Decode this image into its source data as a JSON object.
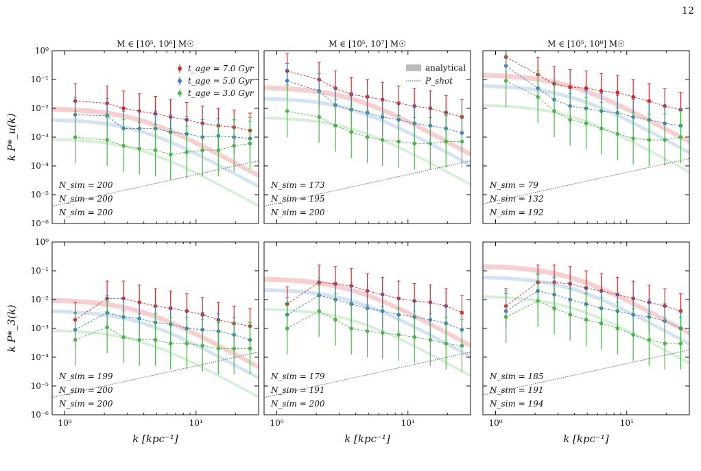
{
  "page": {
    "number": "12"
  },
  "legend": {
    "red_label": "t_age = 7.0 Gyr",
    "blue_label": "t_age = 5.0 Gyr",
    "green_label": "t_age = 3.0 Gyr",
    "analytical_label": "analytical",
    "shot_label": "P_shot"
  },
  "colors": {
    "red": "#d62728",
    "blue": "#3b7dbf",
    "green": "#4bb44a",
    "shot": "#666666"
  },
  "axes": {
    "xlabel": "k [kpc⁻¹]",
    "row_ylabels": [
      "k P*_u(k)",
      "k P*_3(k)"
    ],
    "col_titles": [
      "M ∈ [10⁵, 10⁶] M☉",
      "M ∈ [10⁵, 10⁷] M☉",
      "M ∈ [10⁵, 10⁸] M☉"
    ],
    "xlim": [
      0.8,
      30
    ],
    "ylim": [
      1e-06,
      1
    ],
    "xscale": "log",
    "yscale": "log"
  },
  "chart_data": {
    "type": "scatter",
    "k": [
      1.2,
      2.1,
      2.8,
      3.7,
      4.9,
      6.4,
      8.5,
      11.2,
      14.8,
      19.5,
      25.8
    ],
    "panels": [
      {
        "row": 0,
        "col": 0,
        "n_sim": {
          "red": "N_sim = 200",
          "blue": "N_sim = 200",
          "green": "N_sim = 200"
        },
        "series": [
          {
            "name": "red",
            "values": [
              0.018,
              0.015,
              0.01,
              0.008,
              0.0065,
              0.005,
              0.004,
              0.003,
              0.0025,
              0.0022,
              0.0017
            ]
          },
          {
            "name": "blue",
            "values": [
              0.006,
              0.0055,
              0.002,
              0.002,
              0.002,
              0.0015,
              0.0013,
              0.001,
              0.0011,
              0.001,
              0.0009
            ]
          },
          {
            "name": "green",
            "values": [
              0.001,
              0.0008,
              0.0005,
              0.0004,
              0.00035,
              0.00025,
              0.0003,
              0.00035,
              0.00035,
              0.0005,
              0.0006
            ]
          }
        ],
        "band_amplitude": 0.01
      },
      {
        "row": 0,
        "col": 1,
        "n_sim": {
          "red": "N_sim = 173",
          "blue": "N_sim = 195",
          "green": "N_sim = 200"
        },
        "series": [
          {
            "name": "red",
            "values": [
              0.2,
              0.1,
              0.05,
              0.03,
              0.025,
              0.02,
              0.015,
              0.012,
              0.01,
              0.007,
              0.005
            ]
          },
          {
            "name": "blue",
            "values": [
              0.09,
              0.04,
              0.013,
              0.009,
              0.007,
              0.005,
              0.004,
              0.003,
              0.0025,
              0.002,
              0.0014
            ]
          },
          {
            "name": "green",
            "values": [
              0.008,
              0.005,
              0.0025,
              0.0015,
              0.001,
              0.0008,
              0.0007,
              0.0006,
              0.0006,
              0.0007,
              0.0007
            ]
          }
        ],
        "band_amplitude": 0.055
      },
      {
        "row": 0,
        "col": 2,
        "n_sim": {
          "red": "N_sim = 79",
          "blue": "N_sim = 132",
          "green": "N_sim = 192"
        },
        "series": [
          {
            "name": "red",
            "values": [
              0.6,
              0.15,
              0.07,
              0.055,
              0.05,
              0.04,
              0.035,
              0.025,
              0.018,
              0.012,
              0.009
            ]
          },
          {
            "name": "blue",
            "values": [
              0.3,
              0.05,
              0.02,
              0.012,
              0.01,
              0.008,
              0.007,
              0.005,
              0.004,
              0.003,
              0.0025
            ]
          },
          {
            "name": "green",
            "values": [
              0.09,
              0.025,
              0.008,
              0.004,
              0.003,
              0.002,
              0.0013,
              0.0009,
              0.0008,
              0.0008,
              0.001
            ]
          }
        ],
        "band_amplitude": 0.15
      },
      {
        "row": 1,
        "col": 0,
        "n_sim": {
          "red": "N_sim = 199",
          "blue": "N_sim = 200",
          "green": "N_sim = 200"
        },
        "series": [
          {
            "name": "red",
            "values": [
              0.002,
              0.011,
              0.011,
              0.008,
              0.006,
              0.005,
              0.004,
              0.003,
              0.002,
              0.0015,
              0.0012
            ]
          },
          {
            "name": "blue",
            "values": [
              0.0009,
              0.0035,
              0.0025,
              0.0022,
              0.0016,
              0.0014,
              0.001,
              0.0009,
              0.0008,
              0.0006,
              0.0004
            ]
          },
          {
            "name": "green",
            "values": [
              0.0004,
              0.0011,
              0.0005,
              0.0004,
              0.0004,
              0.0003,
              0.0003,
              0.00025,
              0.0002,
              0.0002,
              0.0002
            ]
          }
        ],
        "band_amplitude": 0.01
      },
      {
        "row": 1,
        "col": 1,
        "n_sim": {
          "red": "N_sim = 179",
          "blue": "N_sim = 191",
          "green": "N_sim = 200"
        },
        "series": [
          {
            "name": "red",
            "values": [
              0.007,
              0.04,
              0.035,
              0.03,
              0.02,
              0.015,
              0.011,
              0.009,
              0.008,
              0.006,
              0.0035
            ]
          },
          {
            "name": "blue",
            "values": [
              0.003,
              0.014,
              0.01,
              0.007,
              0.005,
              0.004,
              0.003,
              0.0025,
              0.002,
              0.0015,
              0.0009
            ]
          },
          {
            "name": "green",
            "values": [
              0.001,
              0.004,
              0.002,
              0.001,
              0.0008,
              0.0007,
              0.0006,
              0.0005,
              0.0004,
              0.0003,
              0.00025
            ]
          }
        ],
        "band_amplitude": 0.055
      },
      {
        "row": 1,
        "col": 2,
        "n_sim": {
          "red": "N_sim = 185",
          "blue": "N_sim = 191",
          "green": "N_sim = 194"
        },
        "series": [
          {
            "name": "red",
            "values": [
              0.006,
              0.04,
              0.04,
              0.035,
              0.025,
              0.02,
              0.015,
              0.011,
              0.008,
              0.006,
              0.004
            ]
          },
          {
            "name": "blue",
            "values": [
              0.004,
              0.02,
              0.015,
              0.01,
              0.007,
              0.005,
              0.004,
              0.003,
              0.0025,
              0.0018,
              0.001
            ]
          },
          {
            "name": "green",
            "values": [
              0.0025,
              0.009,
              0.005,
              0.003,
              0.002,
              0.0015,
              0.001,
              0.0006,
              0.0004,
              0.0003,
              0.0003
            ]
          }
        ],
        "band_amplitude": 0.15
      }
    ]
  }
}
